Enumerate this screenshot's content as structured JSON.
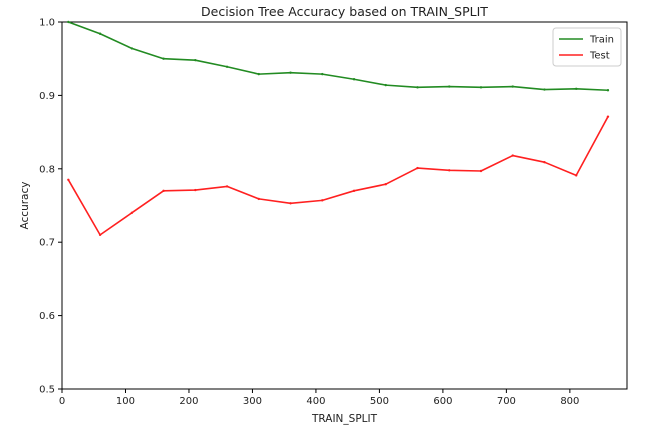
{
  "chart_data": {
    "type": "line",
    "title": "Decision Tree Accuracy based on TRAIN_SPLIT",
    "xlabel": "TRAIN_SPLIT",
    "ylabel": "Accuracy",
    "xlim": [
      0,
      890
    ],
    "ylim": [
      0.5,
      1.0
    ],
    "xticks": [
      0,
      100,
      200,
      300,
      400,
      500,
      600,
      700,
      800
    ],
    "yticks": [
      0.5,
      0.6,
      0.7,
      0.8,
      0.9,
      1.0
    ],
    "xtick_labels": [
      "0",
      "100",
      "200",
      "300",
      "400",
      "500",
      "600",
      "700",
      "800"
    ],
    "ytick_labels": [
      "0.5",
      "0.6",
      "0.7",
      "0.8",
      "0.9",
      "1.0"
    ],
    "grid": false,
    "legend_position": "top-right",
    "x": [
      10,
      60,
      110,
      160,
      210,
      260,
      310,
      360,
      410,
      460,
      510,
      560,
      610,
      660,
      710,
      760,
      810,
      860
    ],
    "series": [
      {
        "name": "Train",
        "color": "#228b22",
        "values": [
          1.0,
          0.984,
          0.964,
          0.95,
          0.948,
          0.939,
          0.929,
          0.931,
          0.929,
          0.922,
          0.914,
          0.911,
          0.912,
          0.911,
          0.912,
          0.908,
          0.909,
          0.907
        ]
      },
      {
        "name": "Test",
        "color": "#ff2020",
        "values": [
          0.785,
          0.71,
          0.74,
          0.77,
          0.771,
          0.776,
          0.759,
          0.753,
          0.757,
          0.77,
          0.779,
          0.801,
          0.798,
          0.797,
          0.818,
          0.809,
          0.791,
          0.871
        ]
      }
    ]
  }
}
